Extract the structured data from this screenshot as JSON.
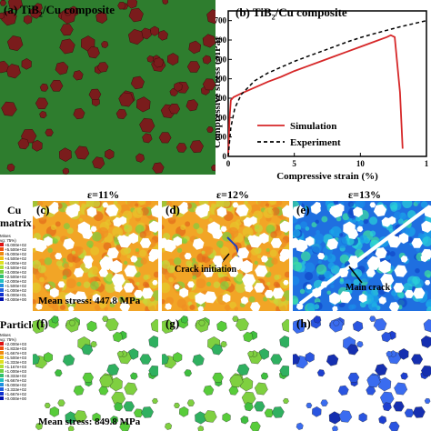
{
  "panel_a": {
    "label": "(a) TiB",
    "sub": "2",
    "rest": "/Cu composite"
  },
  "panel_b": {
    "label": "(b) TiB",
    "sub": "2",
    "rest": "/Cu composite"
  },
  "chart_data": {
    "type": "line",
    "xlabel": "Compressive strain (%)",
    "ylabel": "Compressive stress (MPa)",
    "xlim": [
      0,
      15
    ],
    "ylim": [
      0,
      750
    ],
    "xticks": [
      "0",
      "5",
      "10",
      "1"
    ],
    "yticks": [
      "0",
      "100",
      "200",
      "300",
      "400",
      "500",
      "600",
      "700"
    ],
    "series": [
      {
        "name": "Simulation",
        "color": "#d62728",
        "style": "solid",
        "x": [
          0,
          0.1,
          0.2,
          0.4,
          1,
          2,
          3,
          4,
          5,
          6,
          7,
          8,
          9,
          10,
          11,
          12,
          12.3,
          12.6,
          13.0,
          13.2
        ],
        "y": [
          0,
          200,
          290,
          305,
          325,
          355,
          385,
          410,
          440,
          465,
          490,
          515,
          540,
          565,
          590,
          615,
          625,
          615,
          330,
          40
        ]
      },
      {
        "name": "Experiment",
        "color": "#000000",
        "style": "dashed",
        "x": [
          0,
          0.2,
          0.5,
          1,
          2,
          3,
          4,
          5,
          6,
          7,
          8,
          9,
          10,
          11,
          12,
          13,
          14,
          15
        ],
        "y": [
          0,
          150,
          250,
          320,
          390,
          430,
          460,
          490,
          515,
          540,
          565,
          590,
          612,
          632,
          650,
          668,
          684,
          700
        ]
      }
    ]
  },
  "strain_labels": [
    "ε=11%",
    "ε=12%",
    "ε=13%"
  ],
  "row_labels": {
    "cu": "Cu",
    "matrix": "matrix",
    "particles": "Particles"
  },
  "panel_c": {
    "label": "(c)",
    "note": "Mean stress: 447.8 MPa"
  },
  "panel_d": {
    "label": "(d)",
    "note": "Crack initiation"
  },
  "panel_e": {
    "label": "(e)",
    "note": "Main crack"
  },
  "panel_f": {
    "label": "(f)",
    "note": "Mean stress: 849.8 MPa"
  },
  "panel_g": {
    "label": "(g)"
  },
  "panel_h": {
    "label": "(h)"
  },
  "legend_matrix": {
    "title": "Mises",
    "avg": "vg: 75%)",
    "values": [
      "+6.000e+02",
      "+5.500e+02",
      "+5.000e+02",
      "+4.500e+02",
      "+4.000e+02",
      "+3.500e+02",
      "+3.000e+02",
      "+2.500e+02",
      "+2.000e+02",
      "+1.500e+02",
      "+1.000e+02",
      "+5.000e+01",
      "+0.000e+00"
    ]
  },
  "legend_particles": {
    "title": "Mises",
    "avg": "vg: 75%)",
    "values": [
      "+2.000e+03",
      "+1.833e+03",
      "+1.667e+03",
      "+1.500e+03",
      "+1.333e+03",
      "+1.167e+03",
      "+1.000e+03",
      "+8.333e+02",
      "+6.667e+02",
      "+5.000e+02",
      "+3.333e+02",
      "+1.667e+02",
      "+0.000e+00"
    ]
  }
}
